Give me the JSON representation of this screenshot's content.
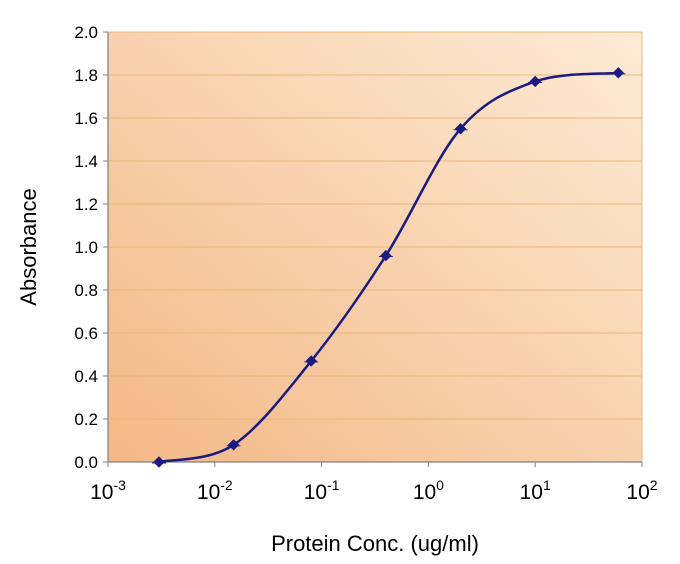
{
  "chart_data": {
    "type": "line",
    "title": "",
    "xlabel": "Protein Conc. (ug/ml)",
    "ylabel": "Absorbance",
    "x_scale": "log",
    "xlim": [
      0.001,
      100
    ],
    "ylim": [
      0.0,
      2.0
    ],
    "x_tick_labels": [
      {
        "base": "10",
        "exp": "-3"
      },
      {
        "base": "10",
        "exp": "-2"
      },
      {
        "base": "10",
        "exp": "-1"
      },
      {
        "base": "10",
        "exp": "0"
      },
      {
        "base": "10",
        "exp": "1"
      },
      {
        "base": "10",
        "exp": "2"
      }
    ],
    "y_tick_labels": [
      "0.0",
      "0.2",
      "0.4",
      "0.6",
      "0.8",
      "1.0",
      "1.2",
      "1.4",
      "1.6",
      "1.8",
      "2.0"
    ],
    "grid": {
      "horizontal": true,
      "vertical": false
    },
    "legend": "none",
    "series": [
      {
        "x": [
          0.003,
          0.015,
          0.08,
          0.4,
          2.0,
          10,
          60
        ],
        "y": [
          0.0,
          0.08,
          0.47,
          0.96,
          1.55,
          1.77,
          1.81
        ]
      }
    ],
    "colors": {
      "line": "#1a1a80",
      "marker": "#1a1a80",
      "grid": "#e8b878",
      "plot_bg_light": "#fdebd6",
      "plot_bg_dark": "#f3b886",
      "axis": "#808080"
    }
  }
}
